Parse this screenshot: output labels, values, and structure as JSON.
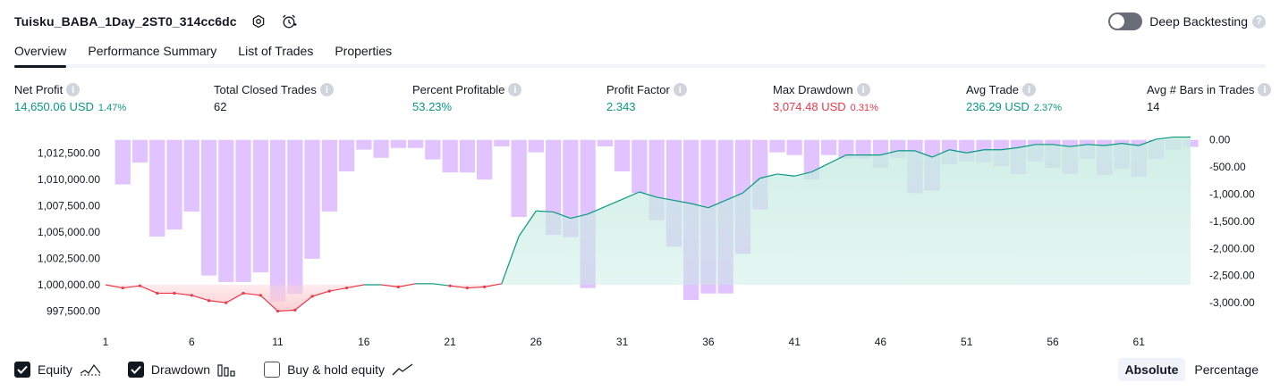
{
  "header": {
    "title": "Tuisku_BABA_1Day_2ST0_314cc6dc",
    "deep_backtesting_label": "Deep Backtesting",
    "deep_backtesting_enabled": false
  },
  "tabs": [
    {
      "label": "Overview",
      "active": true
    },
    {
      "label": "Performance Summary",
      "active": false
    },
    {
      "label": "List of Trades",
      "active": false
    },
    {
      "label": "Properties",
      "active": false
    }
  ],
  "metrics": [
    {
      "label": "Net Profit",
      "value": "14,650.06 USD",
      "pct": "1.47%",
      "color": "#089981"
    },
    {
      "label": "Total Closed Trades",
      "value": "62",
      "pct": "",
      "color": "#131722"
    },
    {
      "label": "Percent Profitable",
      "value": "53.23%",
      "pct": "",
      "color": "#089981"
    },
    {
      "label": "Profit Factor",
      "value": "2.343",
      "pct": "",
      "color": "#089981"
    },
    {
      "label": "Max Drawdown",
      "value": "3,074.48 USD",
      "pct": "0.31%",
      "color": "#f23645"
    },
    {
      "label": "Avg Trade",
      "value": "236.29 USD",
      "pct": "2.37%",
      "color": "#089981"
    },
    {
      "label": "Avg # Bars in Trades",
      "value": "14",
      "pct": "",
      "color": "#131722"
    }
  ],
  "chart_data": {
    "type": "area",
    "x_ticks": [
      "1",
      "6",
      "11",
      "16",
      "21",
      "26",
      "31",
      "36",
      "41",
      "46",
      "51",
      "56",
      "61"
    ],
    "left_axis_ticks": [
      "1,012,500.00",
      "1,010,000.00",
      "1,007,500.00",
      "1,005,000.00",
      "1,002,500.00",
      "1,000,000.00",
      "997,500.00"
    ],
    "right_axis_ticks": [
      "0.00",
      "-500.00",
      "-1,000.00",
      "-1,500.00",
      "-2,000.00",
      "-2,500.00",
      "-3,000.00"
    ],
    "left_ylim": [
      996700,
      1014300
    ],
    "right_ylim": [
      -3310,
      110
    ],
    "baseline": 1000000,
    "series": [
      {
        "name": "Equity",
        "x": [
          1,
          2,
          3,
          4,
          5,
          6,
          7,
          8,
          9,
          10,
          11,
          12,
          13,
          14,
          15,
          16,
          17,
          18,
          19,
          20,
          21,
          22,
          23,
          24,
          25,
          26,
          27,
          28,
          29,
          30,
          31,
          32,
          33,
          34,
          35,
          36,
          37,
          38,
          39,
          40,
          41,
          42,
          43,
          44,
          45,
          46,
          47,
          48,
          49,
          50,
          51,
          52,
          53,
          54,
          55,
          56,
          57,
          58,
          59,
          60,
          61,
          62,
          63,
          64
        ],
        "values": [
          1000000,
          999700,
          999900,
          999200,
          999200,
          999000,
          998500,
          998300,
          999200,
          999000,
          997500,
          997600,
          998900,
          999400,
          999700,
          1000000,
          1000000,
          999800,
          1000100,
          1000100,
          999900,
          999700,
          999800,
          1000100,
          1004600,
          1007000,
          1006900,
          1006300,
          1006700,
          1007400,
          1008100,
          1008800,
          1008300,
          1008000,
          1007700,
          1007300,
          1008000,
          1008700,
          1010100,
          1010500,
          1010300,
          1010700,
          1011500,
          1012300,
          1012300,
          1012300,
          1012700,
          1012700,
          1012100,
          1012800,
          1012500,
          1012800,
          1012800,
          1013000,
          1013300,
          1013300,
          1013100,
          1013300,
          1013200,
          1013400,
          1013200,
          1013800,
          1014000,
          1014000
        ]
      },
      {
        "name": "Drawdown",
        "values": [
          0,
          -820,
          -420,
          -1780,
          -1650,
          -1320,
          -2500,
          -2620,
          -2620,
          -2440,
          -2980,
          -2840,
          -2190,
          -1320,
          -580,
          -180,
          -330,
          -150,
          -150,
          -360,
          -600,
          -600,
          -730,
          -120,
          -1420,
          -230,
          -1750,
          -1790,
          -2730,
          -120,
          -580,
          -980,
          -1480,
          -1970,
          -2950,
          -2830,
          -2830,
          -2100,
          -1280,
          -230,
          -280,
          -730,
          -280,
          -350,
          -350,
          -520,
          -330,
          -980,
          -930,
          -450,
          -400,
          -420,
          -490,
          -630,
          -400,
          -520,
          -630,
          -350,
          -650,
          -530,
          -680,
          -350,
          -180,
          -130
        ]
      }
    ],
    "grid": false
  },
  "legend": [
    {
      "label": "Equity",
      "checked": true
    },
    {
      "label": "Drawdown",
      "checked": true
    },
    {
      "label": "Buy & hold equity",
      "checked": false
    }
  ],
  "modes": [
    {
      "label": "Absolute",
      "active": true
    },
    {
      "label": "Percentage",
      "active": false
    }
  ],
  "colors": {
    "equity_up_line": "#089981",
    "equity_up_fill": "#c8ece2",
    "equity_down_line": "#f23645",
    "equity_down_fill": "#fccfd4",
    "drawdown_bar": "#e1c4ff",
    "drawdown_bar_overlap": "#b7b2f0"
  }
}
